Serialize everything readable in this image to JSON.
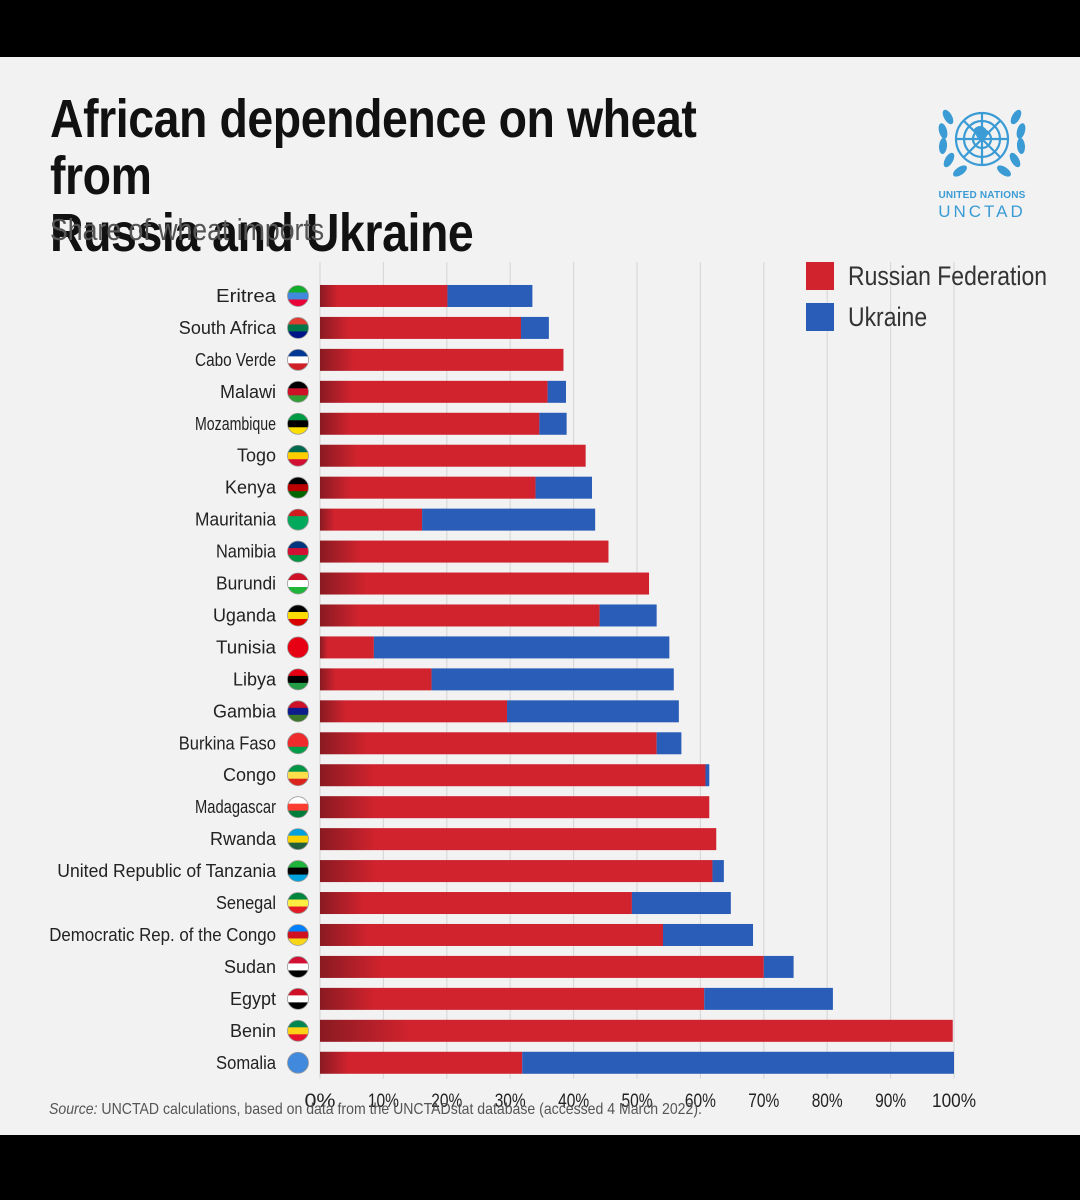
{
  "chart_data": {
    "type": "bar",
    "orientation": "horizontal",
    "stacked": true,
    "title_lines": [
      "African dependence on wheat from",
      "Russia and Ukraine"
    ],
    "subtitle": "Share of wheat imports",
    "categories": [
      "Eritrea",
      "South Africa",
      "Cabo Verde",
      "Malawi",
      "Mozambique",
      "Togo",
      "Kenya",
      "Mauritania",
      "Namibia",
      "Burundi",
      "Uganda",
      "Tunisia",
      "Libya",
      "Gambia",
      "Burkina Faso",
      "Congo",
      "Madagascar",
      "Rwanda",
      "United Republic of Tanzania",
      "Senegal",
      "Democratic Rep. of the Congo",
      "Sudan",
      "Egypt",
      "Benin",
      "Somalia"
    ],
    "series": [
      {
        "name": "Russian Federation",
        "color": "#d0232e",
        "values": [
          20.1,
          31.7,
          38.4,
          35.9,
          34.6,
          41.9,
          34.0,
          16.1,
          45.5,
          51.9,
          44.1,
          8.5,
          17.6,
          29.5,
          53.1,
          60.8,
          61.4,
          62.5,
          61.9,
          49.2,
          54.1,
          70.0,
          60.6,
          99.8,
          31.9
        ]
      },
      {
        "name": "Ukraine",
        "color": "#2a5db7",
        "values": [
          13.4,
          4.4,
          0.0,
          2.9,
          4.3,
          0.0,
          8.9,
          27.3,
          0.0,
          0.0,
          9.0,
          46.6,
          38.2,
          27.1,
          3.9,
          0.6,
          0.0,
          0.0,
          1.8,
          15.6,
          14.2,
          4.7,
          20.3,
          0.0,
          68.1
        ]
      }
    ],
    "x_ticks": [
      "0%",
      "10%",
      "20%",
      "30%",
      "40%",
      "50%",
      "60%",
      "70%",
      "80%",
      "90%",
      "100%"
    ],
    "xlim": [
      0,
      100
    ],
    "grid": true,
    "legend_position": "top-right",
    "flags": [
      {
        "name": "Eritrea-flag",
        "colors": [
          "#12ad2b",
          "#4189dd",
          "#ea0437"
        ]
      },
      {
        "name": "South-Africa-flag",
        "colors": [
          "#e03c31",
          "#007749",
          "#001489"
        ]
      },
      {
        "name": "Cabo-Verde-flag",
        "colors": [
          "#003893",
          "#ffffff",
          "#cf2027"
        ]
      },
      {
        "name": "Malawi-flag",
        "colors": [
          "#000000",
          "#ce1126",
          "#339e35"
        ]
      },
      {
        "name": "Mozambique-flag",
        "colors": [
          "#009a44",
          "#000000",
          "#fce100"
        ]
      },
      {
        "name": "Togo-flag",
        "colors": [
          "#006a4e",
          "#ffce00",
          "#d21034"
        ]
      },
      {
        "name": "Kenya-flag",
        "colors": [
          "#000000",
          "#bb0000",
          "#006600"
        ]
      },
      {
        "name": "Mauritania-flag",
        "colors": [
          "#d01c1f",
          "#00a95c",
          "#00a95c"
        ]
      },
      {
        "name": "Namibia-flag",
        "colors": [
          "#003580",
          "#d21034",
          "#009543"
        ]
      },
      {
        "name": "Burundi-flag",
        "colors": [
          "#ce1126",
          "#ffffff",
          "#1eb53a"
        ]
      },
      {
        "name": "Uganda-flag",
        "colors": [
          "#000000",
          "#fcdc04",
          "#d90000"
        ]
      },
      {
        "name": "Tunisia-flag",
        "colors": [
          "#e70013",
          "#e70013",
          "#e70013"
        ]
      },
      {
        "name": "Libya-flag",
        "colors": [
          "#e70013",
          "#000000",
          "#239e46"
        ]
      },
      {
        "name": "Gambia-flag",
        "colors": [
          "#ce1126",
          "#0c1c8c",
          "#3a7728"
        ]
      },
      {
        "name": "Burkina-Faso-flag",
        "colors": [
          "#ef2b2d",
          "#ef2b2d",
          "#009e49"
        ]
      },
      {
        "name": "Congo-flag",
        "colors": [
          "#009543",
          "#fbde4a",
          "#dc241f"
        ]
      },
      {
        "name": "Madagascar-flag",
        "colors": [
          "#ffffff",
          "#fc3d32",
          "#007e3a"
        ]
      },
      {
        "name": "Rwanda-flag",
        "colors": [
          "#00a1de",
          "#fad201",
          "#20603d"
        ]
      },
      {
        "name": "Tanzania-flag",
        "colors": [
          "#1eb53a",
          "#000000",
          "#00a3dd"
        ]
      },
      {
        "name": "Senegal-flag",
        "colors": [
          "#00853f",
          "#fdef42",
          "#e31b23"
        ]
      },
      {
        "name": "DR-Congo-flag",
        "colors": [
          "#007fff",
          "#ce1021",
          "#f7d618"
        ]
      },
      {
        "name": "Sudan-flag",
        "colors": [
          "#d21034",
          "#ffffff",
          "#000000"
        ]
      },
      {
        "name": "Egypt-flag",
        "colors": [
          "#ce1126",
          "#ffffff",
          "#000000"
        ]
      },
      {
        "name": "Benin-flag",
        "colors": [
          "#008751",
          "#fcd116",
          "#e8112d"
        ]
      },
      {
        "name": "Somalia-flag",
        "colors": [
          "#4189dd",
          "#4189dd",
          "#4189dd"
        ]
      }
    ]
  },
  "logo": {
    "name": "united-nations-emblem",
    "color": "#3a9bd5",
    "line1": "UNITED NATIONS",
    "line2": "UNCTAD"
  },
  "source": {
    "label": "Source:",
    "text": " UNCTAD calculations, based on data from the UNCTADstat database (accessed 4 March 2022)."
  }
}
